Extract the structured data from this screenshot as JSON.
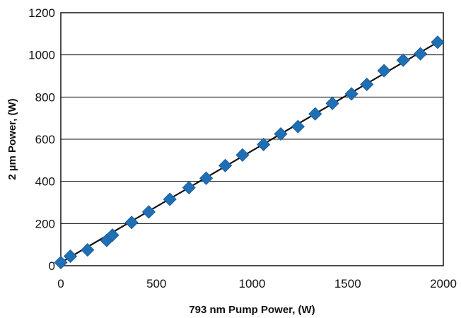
{
  "chart_data": {
    "type": "scatter",
    "title": "",
    "xlabel": "793 nm Pump Power, (W)",
    "ylabel": "2 µm Power, (W)",
    "xlim": [
      0,
      2000
    ],
    "ylim": [
      0,
      1200
    ],
    "x_ticks": [
      0,
      500,
      1000,
      1500,
      2000
    ],
    "y_ticks": [
      0,
      200,
      400,
      600,
      800,
      1000,
      1200
    ],
    "grid": "horizontal",
    "legend": "none",
    "series": [
      {
        "marker": "diamond",
        "color": "#1f6fb5",
        "points": [
          [
            0,
            15
          ],
          [
            50,
            45
          ],
          [
            140,
            75
          ],
          [
            240,
            120
          ],
          [
            270,
            145
          ],
          [
            370,
            205
          ],
          [
            460,
            255
          ],
          [
            570,
            315
          ],
          [
            670,
            370
          ],
          [
            760,
            415
          ],
          [
            860,
            475
          ],
          [
            950,
            525
          ],
          [
            1060,
            575
          ],
          [
            1150,
            625
          ],
          [
            1240,
            660
          ],
          [
            1330,
            720
          ],
          [
            1420,
            770
          ],
          [
            1520,
            815
          ],
          [
            1600,
            860
          ],
          [
            1690,
            925
          ],
          [
            1790,
            975
          ],
          [
            1880,
            1005
          ],
          [
            1970,
            1060
          ]
        ]
      }
    ],
    "fit_line": {
      "color": "#111111",
      "x": [
        0,
        1970
      ],
      "y": [
        15,
        1060
      ]
    }
  }
}
